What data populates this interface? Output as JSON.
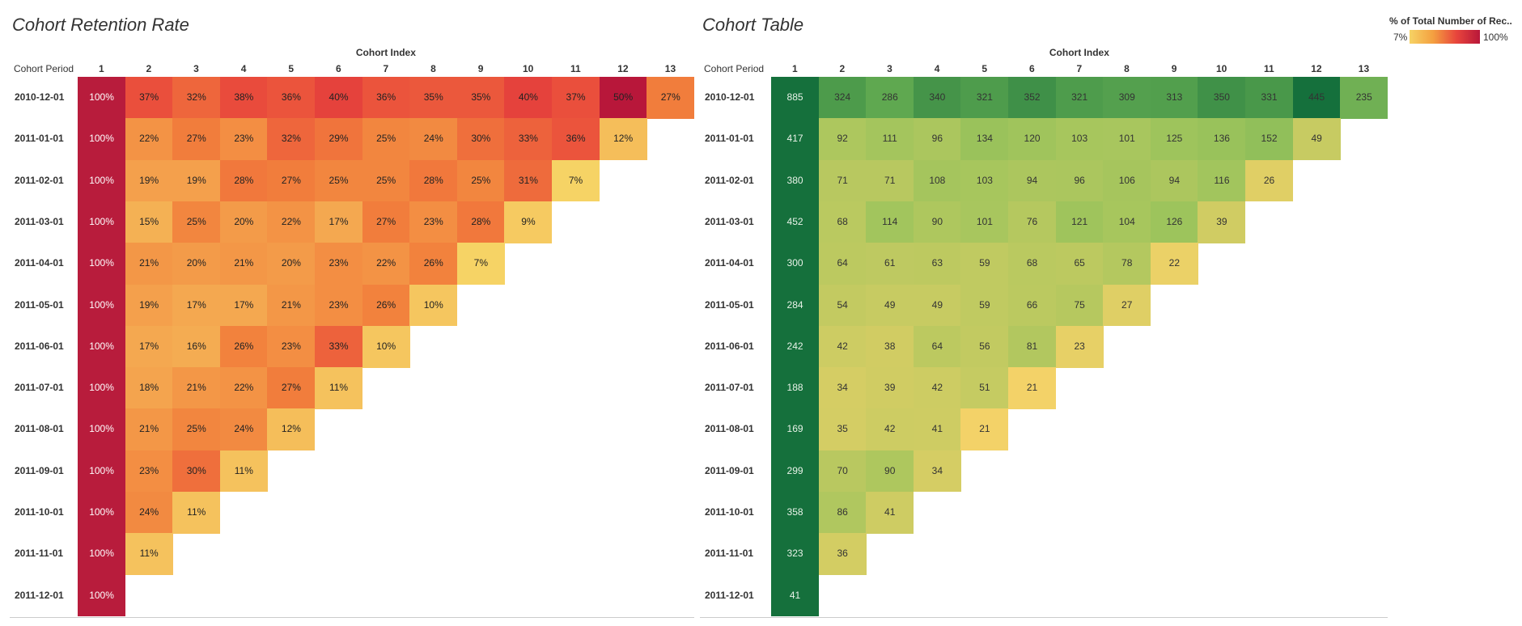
{
  "legend": {
    "title": "% of Total Number of Rec..",
    "min_label": "7%",
    "max_label": "100%"
  },
  "chart_data": [
    {
      "type": "heatmap",
      "title": "Cohort Retention Rate",
      "xlabel": "Cohort Index",
      "ylabel": "Cohort Period",
      "x": [
        "1",
        "2",
        "3",
        "4",
        "5",
        "6",
        "7",
        "8",
        "9",
        "10",
        "11",
        "12",
        "13"
      ],
      "y": [
        "2010-12-01",
        "2011-01-01",
        "2011-02-01",
        "2011-03-01",
        "2011-04-01",
        "2011-05-01",
        "2011-06-01",
        "2011-07-01",
        "2011-08-01",
        "2011-09-01",
        "2011-10-01",
        "2011-11-01",
        "2011-12-01"
      ],
      "value_suffix": "%",
      "values": [
        [
          100,
          37,
          32,
          38,
          36,
          40,
          36,
          35,
          35,
          40,
          37,
          50,
          27
        ],
        [
          100,
          22,
          27,
          23,
          32,
          29,
          25,
          24,
          30,
          33,
          36,
          12
        ],
        [
          100,
          19,
          19,
          28,
          27,
          25,
          25,
          28,
          25,
          31,
          7
        ],
        [
          100,
          15,
          25,
          20,
          22,
          17,
          27,
          23,
          28,
          9
        ],
        [
          100,
          21,
          20,
          21,
          20,
          23,
          22,
          26,
          7
        ],
        [
          100,
          19,
          17,
          17,
          21,
          23,
          26,
          10
        ],
        [
          100,
          17,
          16,
          26,
          23,
          33,
          10
        ],
        [
          100,
          18,
          21,
          22,
          27,
          11
        ],
        [
          100,
          21,
          25,
          24,
          12
        ],
        [
          100,
          23,
          30,
          11
        ],
        [
          100,
          24,
          11
        ],
        [
          100,
          11
        ],
        [
          100
        ]
      ]
    },
    {
      "type": "heatmap",
      "title": "Cohort Table",
      "xlabel": "Cohort Index",
      "ylabel": "Cohort Period",
      "x": [
        "1",
        "2",
        "3",
        "4",
        "5",
        "6",
        "7",
        "8",
        "9",
        "10",
        "11",
        "12",
        "13"
      ],
      "y": [
        "2010-12-01",
        "2011-01-01",
        "2011-02-01",
        "2011-03-01",
        "2011-04-01",
        "2011-05-01",
        "2011-06-01",
        "2011-07-01",
        "2011-08-01",
        "2011-09-01",
        "2011-10-01",
        "2011-11-01",
        "2011-12-01"
      ],
      "value_suffix": "",
      "values": [
        [
          885,
          324,
          286,
          340,
          321,
          352,
          321,
          309,
          313,
          350,
          331,
          445,
          235
        ],
        [
          417,
          92,
          111,
          96,
          134,
          120,
          103,
          101,
          125,
          136,
          152,
          49
        ],
        [
          380,
          71,
          71,
          108,
          103,
          94,
          96,
          106,
          94,
          116,
          26
        ],
        [
          452,
          68,
          114,
          90,
          101,
          76,
          121,
          104,
          126,
          39
        ],
        [
          300,
          64,
          61,
          63,
          59,
          68,
          65,
          78,
          22
        ],
        [
          284,
          54,
          49,
          49,
          59,
          66,
          75,
          27
        ],
        [
          242,
          42,
          38,
          64,
          56,
          81,
          23
        ],
        [
          188,
          34,
          39,
          42,
          51,
          21
        ],
        [
          169,
          35,
          42,
          41,
          21
        ],
        [
          299,
          70,
          90,
          34
        ],
        [
          358,
          86,
          41
        ],
        [
          323,
          36
        ],
        [
          41
        ]
      ]
    }
  ]
}
